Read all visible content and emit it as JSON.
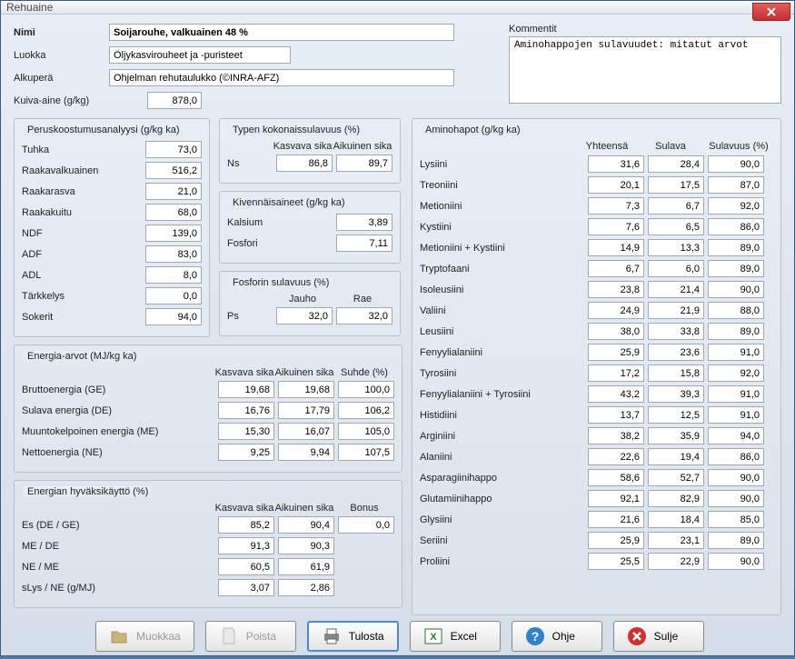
{
  "window": {
    "title": "Rehuaine"
  },
  "top": {
    "name_label": "Nimi",
    "name": "Soijarouhe, valkuainen 48 %",
    "class_label": "Luokka",
    "class": "Öljykasvirouheet ja -puristeet",
    "origin_label": "Alkuperä",
    "origin": "Ohjelman rehutaulukko (©INRA-AFZ)",
    "dm_label": "Kuiva-aine (g/kg)",
    "dm": "878,0",
    "comment_label": "Kommentit",
    "comment": "Aminohappojen sulavuudet: mitatut arvot"
  },
  "basic": {
    "title": "Peruskoostumusanalyysi (g/kg ka)",
    "rows": [
      {
        "label": "Tuhka",
        "val": "73,0"
      },
      {
        "label": "Raakavalkuainen",
        "val": "516,2"
      },
      {
        "label": "Raakarasva",
        "val": "21,0"
      },
      {
        "label": "Raakakuitu",
        "val": "68,0"
      },
      {
        "label": "NDF",
        "val": "139,0"
      },
      {
        "label": "ADF",
        "val": "83,0"
      },
      {
        "label": "ADL",
        "val": "8,0"
      },
      {
        "label": "Tärkkelys",
        "val": "0,0"
      },
      {
        "label": "Sokerit",
        "val": "94,0"
      }
    ]
  },
  "nitrogen": {
    "title": "Typen kokonaissulavuus (%)",
    "h1": "Kasvava sika",
    "h2": "Aikuinen sika",
    "label": "Ns",
    "v1": "86,8",
    "v2": "89,7"
  },
  "minerals": {
    "title": "Kivennäisaineet (g/kg ka)",
    "rows": [
      {
        "label": "Kalsium",
        "val": "3,89"
      },
      {
        "label": "Fosfori",
        "val": "7,11"
      }
    ]
  },
  "phosdig": {
    "title": "Fosforin sulavuus (%)",
    "h1": "Jauho",
    "h2": "Rae",
    "label": "Ps",
    "v1": "32,0",
    "v2": "32,0"
  },
  "energy": {
    "title": "Energia-arvot (MJ/kg ka)",
    "h1": "Kasvava sika",
    "h2": "Aikuinen sika",
    "h3": "Suhde (%)",
    "rows": [
      {
        "label": "Bruttoenergia (GE)",
        "v1": "19,68",
        "v2": "19,68",
        "v3": "100,0"
      },
      {
        "label": "Sulava energia (DE)",
        "v1": "16,76",
        "v2": "17,79",
        "v3": "106,2"
      },
      {
        "label": "Muuntokelpoinen energia (ME)",
        "v1": "15,30",
        "v2": "16,07",
        "v3": "105,0"
      },
      {
        "label": "Nettoenergia (NE)",
        "v1": "9,25",
        "v2": "9,94",
        "v3": "107,5"
      }
    ]
  },
  "eff": {
    "title": "Energian hyväksikäyttö (%)",
    "h1": "Kasvava sika",
    "h2": "Aikuinen sika",
    "h3": "Bonus",
    "rows": [
      {
        "label": "Es (DE / GE)",
        "v1": "85,2",
        "v2": "90,4",
        "v3": "0,0"
      },
      {
        "label": "ME / DE",
        "v1": "91,3",
        "v2": "90,3",
        "v3": ""
      },
      {
        "label": "NE / ME",
        "v1": "60,5",
        "v2": "61,9",
        "v3": ""
      },
      {
        "label": "sLys / NE (g/MJ)",
        "v1": "3,07",
        "v2": "2,86",
        "v3": ""
      }
    ]
  },
  "amino": {
    "title": "Aminohapot (g/kg ka)",
    "h1": "Yhteensä",
    "h2": "Sulava",
    "h3": "Sulavuus (%)",
    "rows": [
      {
        "label": "Lysiini",
        "v1": "31,6",
        "v2": "28,4",
        "v3": "90,0"
      },
      {
        "label": "Treoniini",
        "v1": "20,1",
        "v2": "17,5",
        "v3": "87,0"
      },
      {
        "label": "Metioniini",
        "v1": "7,3",
        "v2": "6,7",
        "v3": "92,0"
      },
      {
        "label": "Kystiini",
        "v1": "7,6",
        "v2": "6,5",
        "v3": "86,0"
      },
      {
        "label": "Metioniini + Kystiini",
        "v1": "14,9",
        "v2": "13,3",
        "v3": "89,0"
      },
      {
        "label": "Tryptofaani",
        "v1": "6,7",
        "v2": "6,0",
        "v3": "89,0"
      },
      {
        "label": "Isoleusiini",
        "v1": "23,8",
        "v2": "21,4",
        "v3": "90,0"
      },
      {
        "label": "Valiini",
        "v1": "24,9",
        "v2": "21,9",
        "v3": "88,0"
      },
      {
        "label": "Leusiini",
        "v1": "38,0",
        "v2": "33,8",
        "v3": "89,0"
      },
      {
        "label": "Fenyylialaniini",
        "v1": "25,9",
        "v2": "23,6",
        "v3": "91,0"
      },
      {
        "label": "Tyrosiini",
        "v1": "17,2",
        "v2": "15,8",
        "v3": "92,0"
      },
      {
        "label": "Fenyylialaniini + Tyrosiini",
        "v1": "43,2",
        "v2": "39,3",
        "v3": "91,0"
      },
      {
        "label": "Histidiini",
        "v1": "13,7",
        "v2": "12,5",
        "v3": "91,0"
      },
      {
        "label": "Arginiini",
        "v1": "38,2",
        "v2": "35,9",
        "v3": "94,0"
      },
      {
        "label": "Alaniini",
        "v1": "22,6",
        "v2": "19,4",
        "v3": "86,0"
      },
      {
        "label": "Asparagiinihappo",
        "v1": "58,6",
        "v2": "52,7",
        "v3": "90,0"
      },
      {
        "label": "Glutamiinihappo",
        "v1": "92,1",
        "v2": "82,9",
        "v3": "90,0"
      },
      {
        "label": "Glysiini",
        "v1": "21,6",
        "v2": "18,4",
        "v3": "85,0"
      },
      {
        "label": "Seriini",
        "v1": "25,9",
        "v2": "23,1",
        "v3": "89,0"
      },
      {
        "label": "Proliini",
        "v1": "25,5",
        "v2": "22,9",
        "v3": "90,0"
      }
    ]
  },
  "buttons": {
    "edit": "Muokkaa",
    "delete": "Poista",
    "print": "Tulosta",
    "excel": "Excel",
    "help": "Ohje",
    "close": "Sulje"
  }
}
